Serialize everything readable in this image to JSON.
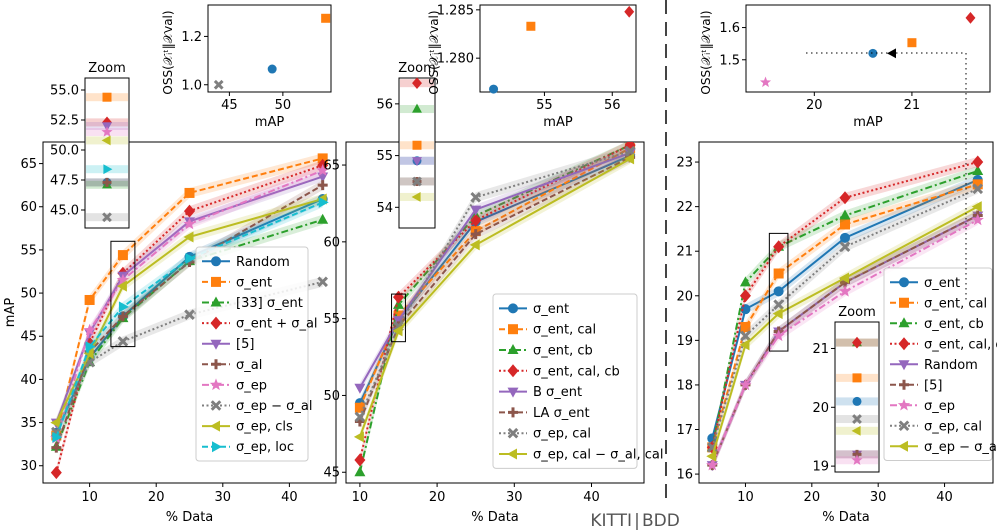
{
  "divider_label": {
    "left": "KITTI",
    "right": "BDD"
  },
  "colors": {
    "blue": "#1f77b4",
    "orange": "#ff7f0e",
    "green": "#2ca02c",
    "red": "#d62728",
    "purple": "#9467bd",
    "brown": "#8c564b",
    "pink": "#e377c2",
    "gray": "#7f7f7f",
    "olive": "#bcbd22",
    "cyan": "#17becf",
    "black": "#000000"
  },
  "chart_data": [
    {
      "type": "line",
      "panel": "kitti-left",
      "xlabel": "% Data",
      "ylabel": "mAP",
      "xlim": [
        3,
        47
      ],
      "ylim": [
        28,
        67.5
      ],
      "xticks": [
        10,
        20,
        30,
        40
      ],
      "yticks": [
        30,
        35,
        40,
        45,
        50,
        55,
        60,
        65
      ],
      "x": [
        5,
        10,
        15,
        25,
        45
      ],
      "legend_position": "lower-right",
      "series": [
        {
          "name": "Random",
          "color": "blue",
          "marker": "circle",
          "dash": "solid",
          "values": [
            33.8,
            42.5,
            47.3,
            54.2,
            60.9
          ]
        },
        {
          "name": "σ_ent",
          "color": "orange",
          "marker": "square",
          "dash": "dashed",
          "values": [
            33.5,
            49.2,
            54.4,
            61.6,
            65.6
          ]
        },
        {
          "name": "[33] σ_ent",
          "color": "green",
          "marker": "triangle-up",
          "dash": "dashdot",
          "values": [
            32.2,
            42.0,
            47.1,
            53.7,
            58.5
          ]
        },
        {
          "name": "σ_ent + σ_al",
          "color": "red",
          "marker": "diamond",
          "dash": "dotted",
          "values": [
            29.2,
            44.2,
            52.3,
            59.5,
            64.8
          ]
        },
        {
          "name": "[5]",
          "color": "purple",
          "marker": "triangle-down",
          "dash": "solid",
          "values": [
            35.0,
            45.4,
            52.0,
            58.3,
            63.5
          ]
        },
        {
          "name": "σ_al",
          "color": "brown",
          "marker": "plus",
          "dash": "dashed",
          "values": [
            32.1,
            43.2,
            47.3,
            53.6,
            62.5
          ]
        },
        {
          "name": "σ_ep",
          "color": "pink",
          "marker": "star",
          "dash": "dashdot",
          "values": [
            33.2,
            45.7,
            51.5,
            58.0,
            64.2
          ]
        },
        {
          "name": "σ_ep − σ_al",
          "color": "gray",
          "marker": "x",
          "dash": "dotted",
          "values": [
            33.9,
            42.0,
            44.4,
            47.5,
            51.3
          ]
        },
        {
          "name": "σ_ep, cls",
          "color": "olive",
          "marker": "triangle-left",
          "dash": "solid",
          "values": [
            35.0,
            43.0,
            50.8,
            56.5,
            60.9
          ]
        },
        {
          "name": "σ_ep, loc",
          "color": "cyan",
          "marker": "triangle-right",
          "dash": "dashed",
          "values": [
            33.3,
            43.8,
            48.4,
            54.0,
            60.5
          ]
        }
      ],
      "zoom": {
        "title": "Zoom",
        "at_x": 15,
        "ylim": [
          43.5,
          56.0
        ],
        "yticks": [
          45.0,
          47.5,
          50.0,
          52.5,
          55.0
        ],
        "yticklabels": [
          "45.0",
          "47.5",
          "50.0",
          "52.5",
          "55.0"
        ]
      },
      "inset": {
        "xlabel": "mAP",
        "ylabel": "OSS(𝒳ᵢᵗ‖𝒳val)",
        "xlim": [
          43,
          54.5
        ],
        "ylim": [
          0.97,
          1.33
        ],
        "xticks": [
          45,
          50
        ],
        "yticks": [
          1.0,
          1.2
        ],
        "points": [
          {
            "color": "gray",
            "marker": "x",
            "x": 44.0,
            "y": 1.0
          },
          {
            "color": "blue",
            "marker": "circle",
            "x": 49.0,
            "y": 1.065
          },
          {
            "color": "orange",
            "marker": "square",
            "x": 54.0,
            "y": 1.275
          }
        ]
      }
    },
    {
      "type": "line",
      "panel": "kitti-right",
      "xlabel": "% Data",
      "ylabel": "",
      "xlim": [
        8.2,
        46.8
      ],
      "ylim": [
        44.3,
        66.5
      ],
      "xticks": [
        10,
        20,
        30,
        40
      ],
      "yticks": [
        45,
        50,
        55,
        60,
        65
      ],
      "x": [
        10,
        15,
        25,
        45
      ],
      "legend_position": "lower-right",
      "series": [
        {
          "name": "σ_ent",
          "color": "blue",
          "marker": "circle",
          "dash": "solid",
          "values": [
            49.5,
            54.9,
            61.3,
            65.6
          ]
        },
        {
          "name": "σ_ent, cal",
          "color": "orange",
          "marker": "square",
          "dash": "dashed",
          "values": [
            49.2,
            55.2,
            60.7,
            66.1
          ]
        },
        {
          "name": "σ_ent, cb",
          "color": "green",
          "marker": "triangle-up",
          "dash": "dashdot",
          "values": [
            45.0,
            55.9,
            61.7,
            66.3
          ]
        },
        {
          "name": "σ_ent, cal, cb",
          "color": "red",
          "marker": "diamond",
          "dash": "dotted",
          "values": [
            45.8,
            56.4,
            61.4,
            66.3
          ]
        },
        {
          "name": "B σ_ent",
          "color": "purple",
          "marker": "triangle-down",
          "dash": "solid",
          "values": [
            50.5,
            54.9,
            62.1,
            65.8
          ]
        },
        {
          "name": "LA σ_ent",
          "color": "brown",
          "marker": "plus",
          "dash": "dashed",
          "values": [
            48.3,
            54.5,
            60.5,
            65.5
          ]
        },
        {
          "name": "σ_ep, cal",
          "color": "gray",
          "marker": "x",
          "dash": "dotted",
          "values": [
            48.6,
            54.5,
            62.9,
            65.9
          ]
        },
        {
          "name": "σ_ep, cal − σ_al, cal",
          "color": "olive",
          "marker": "triangle-left",
          "dash": "solid",
          "values": [
            47.3,
            54.2,
            59.8,
            65.4
          ]
        }
      ],
      "zoom": {
        "title": "Zoom",
        "at_x": 15,
        "ylim": [
          53.6,
          56.5
        ],
        "yticks": [
          54,
          55,
          56
        ],
        "yticklabels": [
          "54",
          "55",
          "56"
        ]
      },
      "inset": {
        "xlabel": "mAP",
        "ylabel": "OSS(𝒳ᵢᵗ‖𝒳val)",
        "xlim": [
          54.05,
          56.35
        ],
        "ylim": [
          1.2765,
          1.2855
        ],
        "xticks": [
          55,
          56
        ],
        "yticks": [
          1.28,
          1.285
        ],
        "yticklabels": [
          "1.280",
          "1.285"
        ],
        "points": [
          {
            "color": "blue",
            "marker": "circle",
            "x": 54.25,
            "y": 1.2768
          },
          {
            "color": "orange",
            "marker": "square",
            "x": 54.8,
            "y": 1.2833
          },
          {
            "color": "red",
            "marker": "diamond",
            "x": 56.25,
            "y": 1.2848
          }
        ]
      }
    },
    {
      "type": "line",
      "panel": "bdd",
      "xlabel": "% Data",
      "ylabel": "",
      "xlim": [
        3,
        47.3
      ],
      "ylim": [
        15.8,
        23.45
      ],
      "xticks": [
        10,
        20,
        30,
        40
      ],
      "yticks": [
        16,
        17,
        18,
        19,
        20,
        21,
        22,
        23
      ],
      "x": [
        5,
        10,
        15,
        25,
        45
      ],
      "legend_position": "lower-right",
      "series": [
        {
          "name": "σ_ent",
          "color": "blue",
          "marker": "circle",
          "dash": "solid",
          "values": [
            16.8,
            19.7,
            20.1,
            21.3,
            22.6
          ]
        },
        {
          "name": "σ_ent, cal",
          "color": "orange",
          "marker": "square",
          "dash": "dashed",
          "values": [
            16.6,
            19.3,
            20.5,
            21.6,
            22.5
          ]
        },
        {
          "name": "σ_ent, cb",
          "color": "green",
          "marker": "triangle-up",
          "dash": "dashdot",
          "values": [
            16.6,
            20.3,
            21.1,
            21.8,
            22.8
          ]
        },
        {
          "name": "σ_ent, cal, cb",
          "color": "red",
          "marker": "diamond",
          "dash": "dotted",
          "values": [
            16.6,
            20.0,
            21.1,
            22.2,
            23.0
          ]
        },
        {
          "name": "Random",
          "color": "purple",
          "marker": "triangle-down",
          "dash": "solid",
          "values": [
            16.2,
            18.0,
            19.2,
            20.3,
            21.8
          ]
        },
        {
          "name": "[5]",
          "color": "brown",
          "marker": "plus",
          "dash": "dashed",
          "values": [
            16.2,
            18.0,
            19.2,
            20.3,
            21.8
          ]
        },
        {
          "name": "σ_ep",
          "color": "pink",
          "marker": "star",
          "dash": "dashdot",
          "values": [
            16.2,
            18.0,
            19.1,
            20.1,
            21.7
          ]
        },
        {
          "name": "σ_ep, cal",
          "color": "gray",
          "marker": "x",
          "dash": "dotted",
          "values": [
            16.6,
            19.1,
            19.8,
            21.1,
            22.4
          ]
        },
        {
          "name": "σ_ep − σ_al",
          "color": "olive",
          "marker": "triangle-left",
          "dash": "solid",
          "values": [
            16.4,
            18.9,
            19.6,
            20.4,
            22.0
          ]
        }
      ],
      "zoom": {
        "title": "Zoom",
        "at_x": 15,
        "ylim": [
          18.9,
          21.45
        ],
        "yticks": [
          19,
          20,
          21
        ],
        "yticklabels": [
          "19",
          "20",
          "21"
        ]
      },
      "inset": {
        "xlabel": "mAP",
        "ylabel": "OSS(𝒳ᵢᵗ‖𝒳val)",
        "xlim": [
          19.3,
          21.8
        ],
        "ylim": [
          1.4,
          1.67
        ],
        "xticks": [
          20,
          21
        ],
        "yticks": [
          1.5,
          1.6
        ],
        "points": [
          {
            "color": "pink",
            "marker": "star",
            "x": 19.5,
            "y": 1.43
          },
          {
            "color": "blue",
            "marker": "circle",
            "x": 20.6,
            "y": 1.52
          },
          {
            "color": "orange",
            "marker": "square",
            "x": 21.0,
            "y": 1.553
          },
          {
            "color": "red",
            "marker": "diamond",
            "x": 21.6,
            "y": 1.63
          },
          {
            "color": "black",
            "marker": "triangle-left",
            "x": 20.8,
            "y": 1.52
          }
        ]
      }
    }
  ]
}
